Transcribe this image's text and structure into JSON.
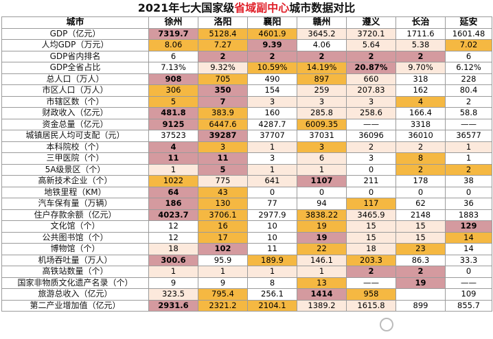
{
  "title": {
    "prefix": "2021年七大国家级",
    "highlight": "省域副中心",
    "suffix": "城市数据对比"
  },
  "palette": {
    "red": "#d49a9f",
    "orange": "#f5b842",
    "peach": "#fce9dc",
    "white": "#ffffff",
    "title_highlight": "#e0202a"
  },
  "header": [
    "城市",
    "徐州",
    "洛阳",
    "襄阳",
    "赣州",
    "遵义",
    "长治",
    "延安"
  ],
  "rows": [
    {
      "label": "GDP（亿元）",
      "cells": [
        {
          "v": "7319.7",
          "c": "r",
          "b": true
        },
        {
          "v": "5128.4",
          "c": "o"
        },
        {
          "v": "4601.9",
          "c": "o"
        },
        {
          "v": "3645.2",
          "c": "p"
        },
        {
          "v": "3720.1",
          "c": "p"
        },
        {
          "v": "1711.6",
          "c": "w"
        },
        {
          "v": "1601.48",
          "c": "w"
        }
      ]
    },
    {
      "label": "人均GDP（万元）",
      "cells": [
        {
          "v": "8.06",
          "c": "o"
        },
        {
          "v": "7.27",
          "c": "o"
        },
        {
          "v": "9.39",
          "c": "r",
          "b": true
        },
        {
          "v": "4.06",
          "c": "w"
        },
        {
          "v": "5.64",
          "c": "p"
        },
        {
          "v": "5.38",
          "c": "p"
        },
        {
          "v": "7.02",
          "c": "o"
        }
      ]
    },
    {
      "label": "GDP省内排名",
      "cells": [
        {
          "v": "6",
          "c": "w"
        },
        {
          "v": "2",
          "c": "r",
          "b": true
        },
        {
          "v": "2",
          "c": "r",
          "b": true
        },
        {
          "v": "2",
          "c": "r",
          "b": true
        },
        {
          "v": "2",
          "c": "r",
          "b": true
        },
        {
          "v": "2",
          "c": "r",
          "b": true
        },
        {
          "v": "6",
          "c": "w"
        }
      ]
    },
    {
      "label": "GDP全省占比",
      "cells": [
        {
          "v": "7.13%",
          "c": "w"
        },
        {
          "v": "9.32%",
          "c": "p"
        },
        {
          "v": "10.59%",
          "c": "o"
        },
        {
          "v": "14.19%",
          "c": "o"
        },
        {
          "v": "20.87%",
          "c": "r",
          "b": true
        },
        {
          "v": "9.70%",
          "c": "p"
        },
        {
          "v": "6.12%",
          "c": "w"
        }
      ]
    },
    {
      "label": "总人口（万人）",
      "cells": [
        {
          "v": "908",
          "c": "r",
          "b": true
        },
        {
          "v": "705",
          "c": "o"
        },
        {
          "v": "490",
          "c": "w"
        },
        {
          "v": "897",
          "c": "o"
        },
        {
          "v": "660",
          "c": "p"
        },
        {
          "v": "318",
          "c": "w"
        },
        {
          "v": "228",
          "c": "w"
        }
      ]
    },
    {
      "label": "市区人口（万人）",
      "cells": [
        {
          "v": "306",
          "c": "o"
        },
        {
          "v": "350",
          "c": "r",
          "b": true
        },
        {
          "v": "154",
          "c": "w"
        },
        {
          "v": "259",
          "c": "p"
        },
        {
          "v": "207.83",
          "c": "p"
        },
        {
          "v": "162",
          "c": "w"
        },
        {
          "v": "80.4",
          "c": "w"
        }
      ]
    },
    {
      "label": "市辖区数（个）",
      "cells": [
        {
          "v": "5",
          "c": "o"
        },
        {
          "v": "7",
          "c": "r",
          "b": true
        },
        {
          "v": "3",
          "c": "p"
        },
        {
          "v": "3",
          "c": "p"
        },
        {
          "v": "3",
          "c": "p"
        },
        {
          "v": "4",
          "c": "o"
        },
        {
          "v": "2",
          "c": "w"
        }
      ]
    },
    {
      "label": "财政收入（亿元）",
      "cells": [
        {
          "v": "481.8",
          "c": "r",
          "b": true
        },
        {
          "v": "383.9",
          "c": "o"
        },
        {
          "v": "160",
          "c": "w"
        },
        {
          "v": "285.8",
          "c": "p"
        },
        {
          "v": "258.6",
          "c": "p"
        },
        {
          "v": "166.4",
          "c": "w"
        },
        {
          "v": "58.8",
          "c": "w"
        }
      ]
    },
    {
      "label": "资金总量（亿元）",
      "cells": [
        {
          "v": "9125",
          "c": "r",
          "b": true
        },
        {
          "v": "6447.6",
          "c": "o"
        },
        {
          "v": "4287.7",
          "c": "w"
        },
        {
          "v": "6009.35",
          "c": "o"
        },
        {
          "v": "——",
          "c": "w"
        },
        {
          "v": "3318",
          "c": "w"
        },
        {
          "v": "——",
          "c": "w"
        }
      ]
    },
    {
      "label": "城镇居民人均可支配（元）",
      "cells": [
        {
          "v": "37523",
          "c": "w"
        },
        {
          "v": "39287",
          "c": "r",
          "b": true
        },
        {
          "v": "37707",
          "c": "w"
        },
        {
          "v": "37031",
          "c": "w"
        },
        {
          "v": "36096",
          "c": "w"
        },
        {
          "v": "36010",
          "c": "w"
        },
        {
          "v": "36577",
          "c": "w"
        }
      ]
    },
    {
      "label": "本科院校（个）",
      "cells": [
        {
          "v": "4",
          "c": "r",
          "b": true
        },
        {
          "v": "3",
          "c": "o"
        },
        {
          "v": "1",
          "c": "p"
        },
        {
          "v": "3",
          "c": "o"
        },
        {
          "v": "2",
          "c": "p"
        },
        {
          "v": "2",
          "c": "p"
        },
        {
          "v": "1",
          "c": "p"
        }
      ]
    },
    {
      "label": "三甲医院（个）",
      "cells": [
        {
          "v": "11",
          "c": "r",
          "b": true
        },
        {
          "v": "11",
          "c": "r",
          "b": true
        },
        {
          "v": "3",
          "c": "w"
        },
        {
          "v": "6",
          "c": "p"
        },
        {
          "v": "3",
          "c": "w"
        },
        {
          "v": "8",
          "c": "o"
        },
        {
          "v": "1",
          "c": "w"
        }
      ]
    },
    {
      "label": "5A级景区（个）",
      "cells": [
        {
          "v": "1",
          "c": "p"
        },
        {
          "v": "5",
          "c": "r",
          "b": true
        },
        {
          "v": "1",
          "c": "p"
        },
        {
          "v": "1",
          "c": "p"
        },
        {
          "v": "0",
          "c": "w"
        },
        {
          "v": "2",
          "c": "o"
        },
        {
          "v": "2",
          "c": "o"
        }
      ]
    },
    {
      "label": "高新技术企业（个）",
      "cells": [
        {
          "v": "1022",
          "c": "o"
        },
        {
          "v": "775",
          "c": "p"
        },
        {
          "v": "641",
          "c": "p"
        },
        {
          "v": "1107",
          "c": "r",
          "b": true
        },
        {
          "v": "211",
          "c": "w"
        },
        {
          "v": "178",
          "c": "w"
        },
        {
          "v": "38",
          "c": "w"
        }
      ]
    },
    {
      "label": "地铁里程（KM）",
      "cells": [
        {
          "v": "64",
          "c": "r",
          "b": true
        },
        {
          "v": "43",
          "c": "o"
        },
        {
          "v": "0",
          "c": "w"
        },
        {
          "v": "0",
          "c": "w"
        },
        {
          "v": "0",
          "c": "w"
        },
        {
          "v": "0",
          "c": "w"
        },
        {
          "v": "0",
          "c": "w"
        }
      ]
    },
    {
      "label": "汽车保有量（万辆）",
      "cells": [
        {
          "v": "186",
          "c": "r",
          "b": true
        },
        {
          "v": "130",
          "c": "o"
        },
        {
          "v": "77",
          "c": "w"
        },
        {
          "v": "94",
          "c": "w"
        },
        {
          "v": "117",
          "c": "o"
        },
        {
          "v": "62",
          "c": "w"
        },
        {
          "v": "36",
          "c": "w"
        }
      ]
    },
    {
      "label": "住户存款余额（亿元）",
      "cells": [
        {
          "v": "4023.7",
          "c": "r",
          "b": true
        },
        {
          "v": "3706.1",
          "c": "o"
        },
        {
          "v": "2977.9",
          "c": "w"
        },
        {
          "v": "3838.22",
          "c": "o"
        },
        {
          "v": "3465.9",
          "c": "p"
        },
        {
          "v": "2148",
          "c": "w"
        },
        {
          "v": "1883",
          "c": "w"
        }
      ]
    },
    {
      "label": "文化馆（个）",
      "cells": [
        {
          "v": "12",
          "c": "w"
        },
        {
          "v": "16",
          "c": "o"
        },
        {
          "v": "10",
          "c": "w"
        },
        {
          "v": "19",
          "c": "o"
        },
        {
          "v": "15",
          "c": "p"
        },
        {
          "v": "15",
          "c": "p"
        },
        {
          "v": "129",
          "c": "r",
          "b": true
        }
      ]
    },
    {
      "label": "公共图书馆（个）",
      "cells": [
        {
          "v": "12",
          "c": "w"
        },
        {
          "v": "17",
          "c": "o"
        },
        {
          "v": "10",
          "c": "w"
        },
        {
          "v": "19",
          "c": "r",
          "b": true
        },
        {
          "v": "15",
          "c": "p"
        },
        {
          "v": "15",
          "c": "p"
        },
        {
          "v": "14",
          "c": "o"
        }
      ]
    },
    {
      "label": "博物馆（个）",
      "cells": [
        {
          "v": "18",
          "c": "p"
        },
        {
          "v": "102",
          "c": "r",
          "b": true
        },
        {
          "v": "11",
          "c": "w"
        },
        {
          "v": "22",
          "c": "o"
        },
        {
          "v": "18",
          "c": "p"
        },
        {
          "v": "23",
          "c": "o"
        },
        {
          "v": "14",
          "c": "w"
        }
      ]
    },
    {
      "label": "机场吞吐量（万人）",
      "cells": [
        {
          "v": "300.6",
          "c": "r",
          "b": true
        },
        {
          "v": "95.9",
          "c": "w"
        },
        {
          "v": "189.9",
          "c": "o"
        },
        {
          "v": "146.1",
          "c": "p"
        },
        {
          "v": "203.3",
          "c": "o"
        },
        {
          "v": "86.3",
          "c": "w"
        },
        {
          "v": "33.3",
          "c": "w"
        }
      ]
    },
    {
      "label": "高铁站数量（个）",
      "cells": [
        {
          "v": "1",
          "c": "p"
        },
        {
          "v": "1",
          "c": "p"
        },
        {
          "v": "1",
          "c": "p"
        },
        {
          "v": "1",
          "c": "p"
        },
        {
          "v": "2",
          "c": "r",
          "b": true
        },
        {
          "v": "2",
          "c": "r",
          "b": true
        },
        {
          "v": "0",
          "c": "w"
        }
      ]
    },
    {
      "label": "国家非物质文化遗产名录（个）",
      "cells": [
        {
          "v": "9",
          "c": "w"
        },
        {
          "v": "9",
          "c": "w"
        },
        {
          "v": "8",
          "c": "w"
        },
        {
          "v": "13",
          "c": "o"
        },
        {
          "v": "——",
          "c": "w"
        },
        {
          "v": "19",
          "c": "r",
          "b": true
        },
        {
          "v": "——",
          "c": "w"
        }
      ]
    },
    {
      "label": "旅游总收入（亿元）",
      "cells": [
        {
          "v": "323.5",
          "c": "p"
        },
        {
          "v": "795.4",
          "c": "o"
        },
        {
          "v": "256.1",
          "c": "w"
        },
        {
          "v": "1414",
          "c": "r",
          "b": true
        },
        {
          "v": "958",
          "c": "o"
        },
        {
          "v": "",
          "c": "w"
        },
        {
          "v": "109",
          "c": "w"
        }
      ]
    },
    {
      "label": "第二产业增加值（亿元）",
      "cells": [
        {
          "v": "2931.6",
          "c": "r",
          "b": true
        },
        {
          "v": "2321.2",
          "c": "o"
        },
        {
          "v": "2104.1",
          "c": "o"
        },
        {
          "v": "1389.2",
          "c": "p"
        },
        {
          "v": "1615.8",
          "c": "p"
        },
        {
          "v": "899",
          "c": "w"
        },
        {
          "v": "855.7",
          "c": "w"
        }
      ]
    }
  ]
}
